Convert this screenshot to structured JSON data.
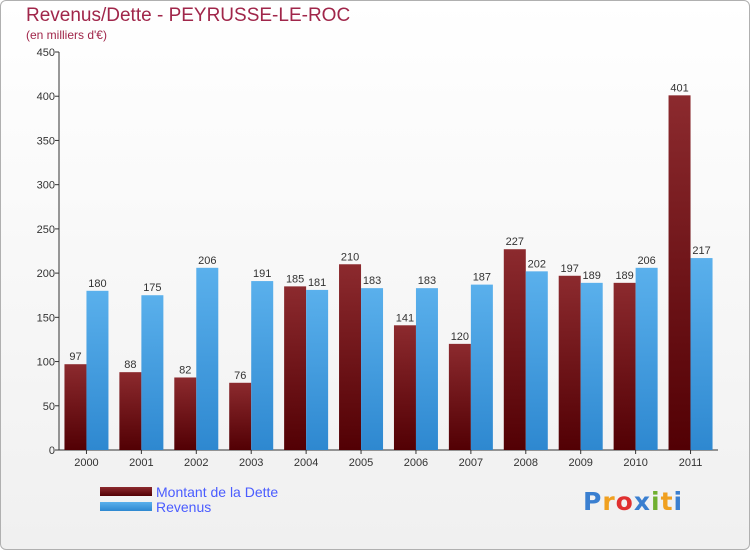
{
  "header": {
    "title": "Revenus/Dette - PEYRUSSE-LE-ROC",
    "subtitle": "(en milliers d'€)"
  },
  "legend": {
    "items": [
      {
        "label": "Montant de la Dette",
        "color": "#7a1e22"
      },
      {
        "label": "Revenus",
        "color": "#3a9ce0"
      }
    ]
  },
  "brand": {
    "text": "Proxiti",
    "letters": [
      "P",
      "r",
      "o",
      "x",
      "i",
      "t",
      "i"
    ],
    "colors": [
      "#3a7fd0",
      "#f0a020",
      "#e03030",
      "#3a7fd0",
      "#70b030",
      "#f0a020",
      "#3a7fd0"
    ]
  },
  "chart_data": {
    "type": "bar",
    "title": "Revenus/Dette - PEYRUSSE-LE-ROC",
    "ylabel": "(en milliers d'€)",
    "xlabel": "",
    "ylim": [
      0,
      450
    ],
    "yticks": [
      0,
      50,
      100,
      150,
      200,
      250,
      300,
      350,
      400,
      450
    ],
    "grid": false,
    "legend_position": "bottom-left",
    "categories": [
      "2000",
      "2001",
      "2002",
      "2003",
      "2004",
      "2005",
      "2006",
      "2007",
      "2008",
      "2009",
      "2010",
      "2011"
    ],
    "series": [
      {
        "name": "Montant de la Dette",
        "color": "#7a1e22",
        "values": [
          97,
          88,
          82,
          76,
          185,
          210,
          141,
          120,
          227,
          197,
          189,
          401
        ]
      },
      {
        "name": "Revenus",
        "color": "#3a9ce0",
        "values": [
          180,
          175,
          206,
          191,
          181,
          183,
          183,
          187,
          202,
          189,
          206,
          217
        ]
      }
    ]
  }
}
